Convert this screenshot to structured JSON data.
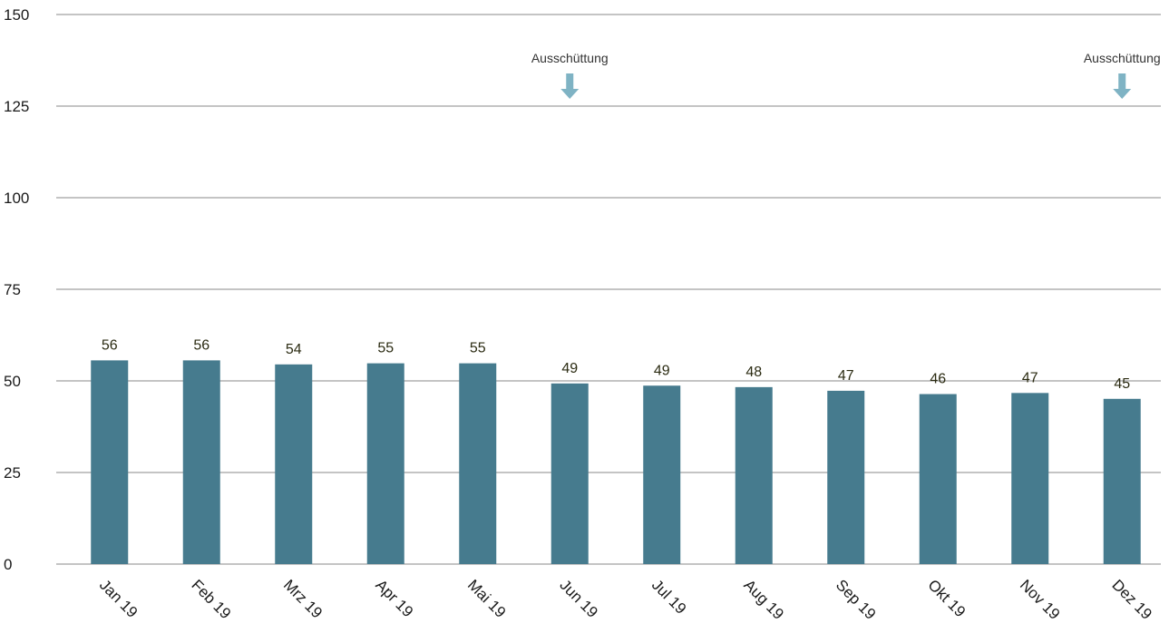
{
  "chart_data": {
    "type": "bar",
    "categories": [
      "Jan 19",
      "Feb 19",
      "Mrz 19",
      "Apr 19",
      "Mai 19",
      "Jun 19",
      "Jul 19",
      "Aug 19",
      "Sep 19",
      "Okt 19",
      "Nov 19",
      "Dez 19"
    ],
    "values": [
      55.6,
      55.6,
      54.5,
      54.8,
      54.8,
      49.3,
      48.7,
      48.3,
      47.3,
      46.4,
      46.7,
      45.1
    ],
    "data_labels": [
      "56",
      "56",
      "54",
      "55",
      "55",
      "49",
      "49",
      "48",
      "47",
      "46",
      "47",
      "45"
    ],
    "yticks": [
      "0",
      "25",
      "50",
      "75",
      "100",
      "125",
      "150"
    ],
    "ylim": [
      0,
      150
    ],
    "grid": true,
    "annotations": [
      {
        "category": "Jun 19",
        "label": "Ausschüttung"
      },
      {
        "category": "Dez 19",
        "label": "Ausschüttung"
      }
    ],
    "colors": {
      "bar": "#467b8e",
      "arrow": "#7fb3c4",
      "grid": "#8a8a8a"
    }
  }
}
